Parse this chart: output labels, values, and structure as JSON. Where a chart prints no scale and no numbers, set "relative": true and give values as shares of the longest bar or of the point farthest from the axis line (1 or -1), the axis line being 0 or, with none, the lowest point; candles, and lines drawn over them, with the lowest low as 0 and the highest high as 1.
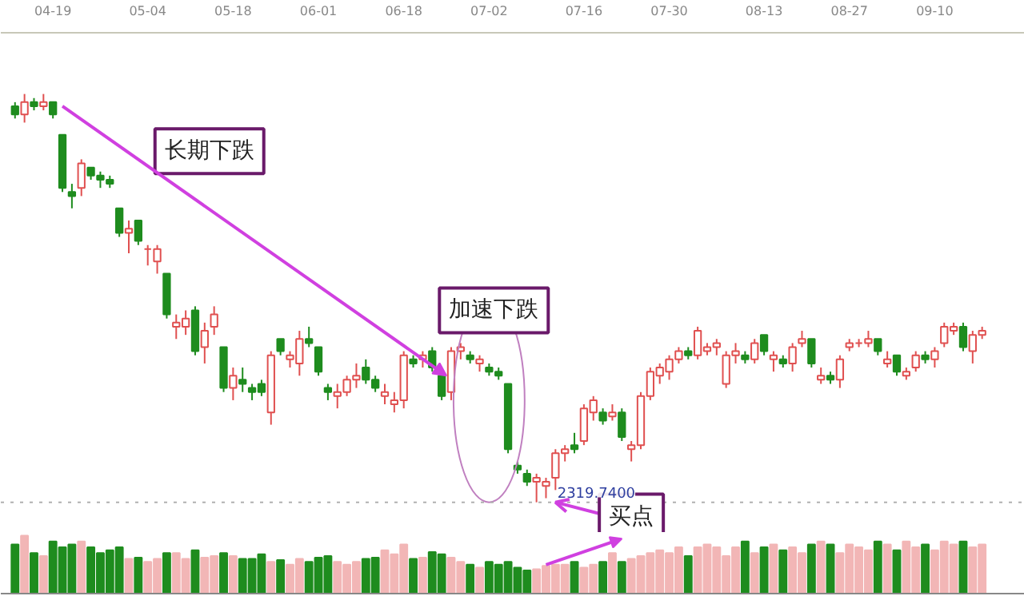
{
  "chart_data": [
    {
      "type": "candlestick",
      "relative": true,
      "categories": [
        null,
        null,
        null,
        null,
        "04-19",
        null,
        null,
        null,
        null,
        null,
        null,
        null,
        null,
        null,
        "05-04",
        null,
        null,
        null,
        null,
        null,
        null,
        null,
        null,
        "05-18",
        null,
        null,
        null,
        null,
        null,
        null,
        null,
        null,
        "06-01",
        null,
        null,
        null,
        null,
        null,
        null,
        null,
        null,
        "06-18",
        null,
        null,
        null,
        null,
        null,
        null,
        null,
        null,
        "07-02",
        null,
        null,
        null,
        null,
        null,
        null,
        null,
        null,
        null,
        "07-16",
        null,
        null,
        null,
        null,
        null,
        null,
        null,
        null,
        "07-30",
        null,
        null,
        null,
        null,
        null,
        null,
        null,
        null,
        null,
        "08-13",
        null,
        null,
        null,
        null,
        null,
        null,
        null,
        null,
        "08-27",
        null,
        null,
        null,
        null,
        null,
        null,
        null,
        null,
        "09-10",
        null,
        null,
        null,
        null,
        null
      ],
      "ohlc": [
        [
          0.97,
          0.98,
          0.94,
          0.95
        ],
        [
          0.95,
          1.0,
          0.93,
          0.98
        ],
        [
          0.98,
          0.99,
          0.96,
          0.97
        ],
        [
          0.97,
          1.0,
          0.96,
          0.98
        ],
        [
          0.98,
          0.98,
          0.94,
          0.95
        ],
        [
          0.9,
          0.9,
          0.76,
          0.77
        ],
        [
          0.76,
          0.78,
          0.72,
          0.75
        ],
        [
          0.77,
          0.84,
          0.75,
          0.83
        ],
        [
          0.82,
          0.82,
          0.79,
          0.8
        ],
        [
          0.8,
          0.81,
          0.77,
          0.79
        ],
        [
          0.79,
          0.8,
          0.77,
          0.78
        ],
        [
          0.72,
          0.72,
          0.65,
          0.66
        ],
        [
          0.66,
          0.69,
          0.61,
          0.67
        ],
        [
          0.69,
          0.69,
          0.63,
          0.64
        ],
        [
          0.62,
          0.63,
          0.58,
          0.62
        ],
        [
          0.59,
          0.63,
          0.56,
          0.62
        ],
        [
          0.56,
          0.56,
          0.45,
          0.46
        ],
        [
          0.43,
          0.46,
          0.4,
          0.44
        ],
        [
          0.43,
          0.47,
          0.41,
          0.45
        ],
        [
          0.47,
          0.48,
          0.36,
          0.37
        ],
        [
          0.38,
          0.44,
          0.34,
          0.42
        ],
        [
          0.43,
          0.48,
          0.41,
          0.46
        ],
        [
          0.38,
          0.38,
          0.27,
          0.28
        ],
        [
          0.28,
          0.33,
          0.25,
          0.31
        ],
        [
          0.3,
          0.33,
          0.27,
          0.29
        ],
        [
          0.28,
          0.29,
          0.25,
          0.27
        ],
        [
          0.29,
          0.3,
          0.26,
          0.27
        ],
        [
          0.22,
          0.37,
          0.19,
          0.36
        ],
        [
          0.4,
          0.4,
          0.36,
          0.37
        ],
        [
          0.35,
          0.37,
          0.33,
          0.36
        ],
        [
          0.34,
          0.42,
          0.31,
          0.4
        ],
        [
          0.4,
          0.43,
          0.38,
          0.39
        ],
        [
          0.38,
          0.38,
          0.31,
          0.32
        ],
        [
          0.28,
          0.29,
          0.25,
          0.27
        ],
        [
          0.26,
          0.29,
          0.23,
          0.27
        ],
        [
          0.27,
          0.31,
          0.26,
          0.3
        ],
        [
          0.3,
          0.34,
          0.28,
          0.31
        ],
        [
          0.33,
          0.35,
          0.29,
          0.3
        ],
        [
          0.3,
          0.31,
          0.27,
          0.28
        ],
        [
          0.26,
          0.29,
          0.24,
          0.27
        ],
        [
          0.24,
          0.27,
          0.22,
          0.25
        ],
        [
          0.25,
          0.37,
          0.23,
          0.36
        ],
        [
          0.35,
          0.36,
          0.33,
          0.34
        ],
        [
          0.35,
          0.37,
          0.33,
          0.36
        ],
        [
          0.37,
          0.38,
          0.32,
          0.33
        ],
        [
          0.31,
          0.31,
          0.25,
          0.26
        ],
        [
          0.27,
          0.38,
          0.25,
          0.37
        ],
        [
          0.37,
          0.39,
          0.35,
          0.38
        ],
        [
          0.36,
          0.37,
          0.34,
          0.35
        ],
        [
          0.34,
          0.36,
          0.32,
          0.35
        ],
        [
          0.33,
          0.34,
          0.31,
          0.32
        ],
        [
          0.32,
          0.33,
          0.3,
          0.31
        ],
        [
          0.29,
          0.29,
          0.12,
          0.13
        ],
        [
          0.09,
          0.1,
          0.07,
          0.08
        ],
        [
          0.07,
          0.08,
          0.04,
          0.05
        ],
        [
          0.05,
          0.07,
          0.0,
          0.06
        ],
        [
          0.04,
          0.06,
          0.01,
          0.05
        ],
        [
          0.06,
          0.13,
          0.03,
          0.12
        ],
        [
          0.12,
          0.14,
          0.1,
          0.13
        ],
        [
          0.14,
          0.17,
          0.12,
          0.13
        ],
        [
          0.15,
          0.24,
          0.14,
          0.23
        ],
        [
          0.22,
          0.26,
          0.2,
          0.25
        ],
        [
          0.22,
          0.23,
          0.19,
          0.2
        ],
        [
          0.21,
          0.24,
          0.2,
          0.22
        ],
        [
          0.22,
          0.23,
          0.15,
          0.16
        ],
        [
          0.13,
          0.15,
          0.1,
          0.14
        ],
        [
          0.14,
          0.27,
          0.13,
          0.26
        ],
        [
          0.26,
          0.33,
          0.25,
          0.32
        ],
        [
          0.31,
          0.34,
          0.29,
          0.33
        ],
        [
          0.32,
          0.36,
          0.3,
          0.35
        ],
        [
          0.35,
          0.38,
          0.34,
          0.37
        ],
        [
          0.37,
          0.38,
          0.35,
          0.36
        ],
        [
          0.36,
          0.43,
          0.35,
          0.42
        ],
        [
          0.37,
          0.39,
          0.36,
          0.38
        ],
        [
          0.38,
          0.4,
          0.36,
          0.39
        ],
        [
          0.29,
          0.37,
          0.28,
          0.36
        ],
        [
          0.36,
          0.39,
          0.34,
          0.37
        ],
        [
          0.36,
          0.37,
          0.34,
          0.35
        ],
        [
          0.35,
          0.4,
          0.34,
          0.39
        ],
        [
          0.41,
          0.41,
          0.36,
          0.37
        ],
        [
          0.35,
          0.37,
          0.32,
          0.36
        ],
        [
          0.35,
          0.36,
          0.33,
          0.34
        ],
        [
          0.34,
          0.39,
          0.32,
          0.38
        ],
        [
          0.39,
          0.42,
          0.38,
          0.4
        ],
        [
          0.4,
          0.4,
          0.33,
          0.34
        ],
        [
          0.3,
          0.33,
          0.29,
          0.31
        ],
        [
          0.31,
          0.32,
          0.29,
          0.3
        ],
        [
          0.3,
          0.36,
          0.28,
          0.35
        ],
        [
          0.38,
          0.4,
          0.37,
          0.39
        ],
        [
          0.39,
          0.4,
          0.38,
          0.39
        ],
        [
          0.39,
          0.42,
          0.38,
          0.4
        ],
        [
          0.4,
          0.4,
          0.36,
          0.37
        ],
        [
          0.34,
          0.37,
          0.33,
          0.35
        ],
        [
          0.36,
          0.36,
          0.31,
          0.32
        ],
        [
          0.31,
          0.33,
          0.3,
          0.32
        ],
        [
          0.33,
          0.37,
          0.32,
          0.36
        ],
        [
          0.36,
          0.37,
          0.34,
          0.35
        ],
        [
          0.35,
          0.38,
          0.33,
          0.37
        ],
        [
          0.39,
          0.44,
          0.38,
          0.43
        ],
        [
          0.42,
          0.44,
          0.41,
          0.43
        ],
        [
          0.43,
          0.44,
          0.37,
          0.38
        ],
        [
          0.37,
          0.42,
          0.34,
          0.41
        ],
        [
          0.41,
          0.43,
          0.4,
          0.42
        ]
      ],
      "annotations": [
        "长期下跌",
        "加速下跌",
        {
          "text": "买点",
          "y": 0
        },
        "2319.7400"
      ],
      "ref_lines": [
        {
          "axis": "y",
          "value": 0,
          "color": "#b0b0b0",
          "line_style": "dotted"
        }
      ]
    },
    {
      "type": "bar",
      "relative": true,
      "categories": [
        null,
        null,
        null,
        null,
        null,
        null,
        null,
        null,
        null,
        null,
        null,
        null,
        null,
        null,
        null,
        null,
        null,
        null,
        null,
        null,
        null,
        null,
        null,
        null,
        null,
        null,
        null,
        null,
        null,
        null,
        null,
        null,
        null,
        null,
        null,
        null,
        null,
        null,
        null,
        null,
        null,
        null,
        null,
        null,
        null,
        null,
        null,
        null,
        null,
        null,
        null,
        null,
        null,
        null,
        null,
        null,
        null,
        null,
        null,
        null,
        null,
        null,
        null,
        null,
        null,
        null,
        null,
        null,
        null,
        null,
        null,
        null,
        null,
        null,
        null,
        null,
        null,
        null,
        null,
        null,
        null,
        null,
        null,
        null,
        null,
        null,
        null,
        null,
        null,
        null,
        null,
        null,
        null,
        null,
        null,
        null,
        null,
        null,
        null,
        null,
        null,
        null,
        null
      ],
      "values": [
        0.85,
        1.0,
        0.7,
        0.65,
        0.9,
        0.8,
        0.85,
        0.9,
        0.8,
        0.7,
        0.75,
        0.8,
        0.6,
        0.62,
        0.55,
        0.6,
        0.7,
        0.7,
        0.6,
        0.75,
        0.62,
        0.65,
        0.7,
        0.65,
        0.6,
        0.6,
        0.68,
        0.55,
        0.58,
        0.5,
        0.6,
        0.55,
        0.62,
        0.65,
        0.55,
        0.5,
        0.55,
        0.6,
        0.62,
        0.75,
        0.68,
        0.85,
        0.6,
        0.62,
        0.72,
        0.68,
        0.62,
        0.55,
        0.5,
        0.45,
        0.55,
        0.5,
        0.55,
        0.45,
        0.4,
        0.42,
        0.48,
        0.5,
        0.5,
        0.55,
        0.45,
        0.5,
        0.55,
        0.7,
        0.55,
        0.6,
        0.65,
        0.7,
        0.75,
        0.7,
        0.8,
        0.65,
        0.8,
        0.85,
        0.8,
        0.65,
        0.8,
        0.9,
        0.7,
        0.8,
        0.85,
        0.75,
        0.8,
        0.7,
        0.85,
        0.9,
        0.85,
        0.7,
        0.85,
        0.8,
        0.75,
        0.9,
        0.85,
        0.75,
        0.9,
        0.8,
        0.85,
        0.75,
        0.9,
        0.85,
        0.9,
        0.8,
        0.85
      ],
      "colors": [
        "#1e8c1e",
        "#f2b6b6",
        "#1e8c1e",
        "#f2b6b6",
        "#1e8c1e",
        "#1e8c1e",
        "#1e8c1e",
        "#f2b6b6",
        "#1e8c1e",
        "#1e8c1e",
        "#1e8c1e",
        "#1e8c1e",
        "#f2b6b6",
        "#1e8c1e",
        "#f2b6b6",
        "#f2b6b6",
        "#1e8c1e",
        "#f2b6b6",
        "#f2b6b6",
        "#1e8c1e",
        "#f2b6b6",
        "#f2b6b6",
        "#1e8c1e",
        "#f2b6b6",
        "#1e8c1e",
        "#1e8c1e",
        "#1e8c1e",
        "#f2b6b6",
        "#1e8c1e",
        "#f2b6b6",
        "#f2b6b6",
        "#1e8c1e",
        "#1e8c1e",
        "#1e8c1e",
        "#f2b6b6",
        "#f2b6b6",
        "#f2b6b6",
        "#1e8c1e",
        "#1e8c1e",
        "#f2b6b6",
        "#f2b6b6",
        "#f2b6b6",
        "#1e8c1e",
        "#f2b6b6",
        "#1e8c1e",
        "#1e8c1e",
        "#f2b6b6",
        "#f2b6b6",
        "#1e8c1e",
        "#f2b6b6",
        "#1e8c1e",
        "#1e8c1e",
        "#1e8c1e",
        "#1e8c1e",
        "#1e8c1e",
        "#f2b6b6",
        "#f2b6b6",
        "#f2b6b6",
        "#f2b6b6",
        "#1e8c1e",
        "#f2b6b6",
        "#f2b6b6",
        "#1e8c1e",
        "#f2b6b6",
        "#1e8c1e",
        "#f2b6b6",
        "#f2b6b6",
        "#f2b6b6",
        "#f2b6b6",
        "#f2b6b6",
        "#f2b6b6",
        "#1e8c1e",
        "#f2b6b6",
        "#f2b6b6",
        "#f2b6b6",
        "#f2b6b6",
        "#f2b6b6",
        "#1e8c1e",
        "#f2b6b6",
        "#1e8c1e",
        "#f2b6b6",
        "#1e8c1e",
        "#f2b6b6",
        "#f2b6b6",
        "#1e8c1e",
        "#f2b6b6",
        "#1e8c1e",
        "#f2b6b6",
        "#f2b6b6",
        "#f2b6b6",
        "#f2b6b6",
        "#1e8c1e",
        "#f2b6b6",
        "#1e8c1e",
        "#f2b6b6",
        "#f2b6b6",
        "#1e8c1e",
        "#f2b6b6",
        "#f2b6b6",
        "#f2b6b6",
        "#1e8c1e",
        "#f2b6b6",
        "#f2b6b6"
      ]
    }
  ]
}
